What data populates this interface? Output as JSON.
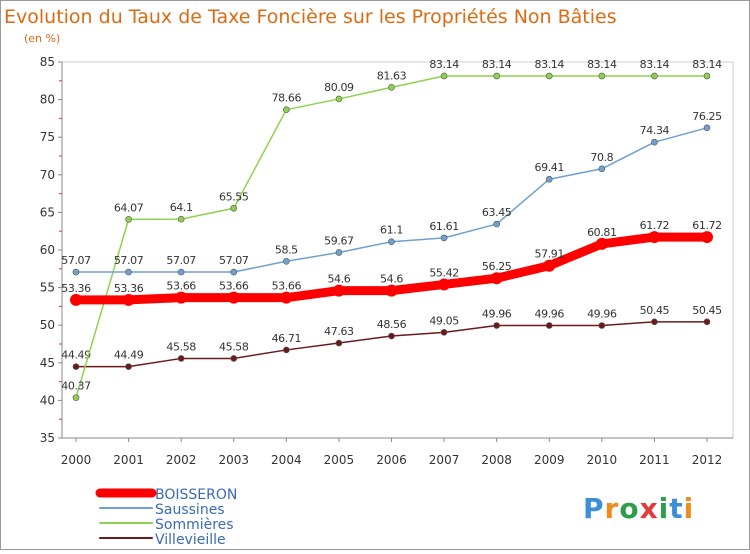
{
  "chart_data": {
    "type": "line",
    "title": "Evolution du Taux de Taxe Foncière sur les Propriétés Non Bâties",
    "subtitle": "(en %)",
    "xlabel": "",
    "ylabel": "",
    "x": [
      "2000",
      "2001",
      "2002",
      "2003",
      "2004",
      "2005",
      "2006",
      "2007",
      "2008",
      "2009",
      "2010",
      "2011",
      "2012"
    ],
    "ylim": [
      35,
      85
    ],
    "yticks": [
      "35",
      "40",
      "45",
      "50",
      "55",
      "60",
      "65",
      "70",
      "75",
      "80",
      "85"
    ],
    "grid": false,
    "legend_position": "bottom-left",
    "series": [
      {
        "name": "Villevieille",
        "color": "#6b1a1a",
        "values": [
          44.49,
          44.49,
          45.58,
          45.58,
          46.71,
          47.63,
          48.56,
          49.05,
          49.96,
          49.96,
          49.96,
          50.45,
          50.45
        ],
        "labels": [
          "44.49",
          "44.49",
          "45.58",
          "45.58",
          "46.71",
          "47.63",
          "48.56",
          "49.05",
          "49.96",
          "49.96",
          "49.96",
          "50.45",
          "50.45"
        ]
      },
      {
        "name": "Sommières",
        "color": "#8fd14f",
        "values": [
          40.37,
          64.07,
          64.1,
          65.55,
          78.66,
          80.09,
          81.63,
          83.14,
          83.14,
          83.14,
          83.14,
          83.14,
          83.14
        ],
        "labels": [
          "40.37",
          "64.07",
          "64.1",
          "65.55",
          "78.66",
          "80.09",
          "81.63",
          "83.14",
          "83.14",
          "83.14",
          "83.14",
          "83.14",
          "83.14"
        ]
      },
      {
        "name": "Saussines",
        "color": "#6fa0cf",
        "values": [
          57.07,
          57.07,
          57.07,
          57.07,
          58.5,
          59.67,
          61.1,
          61.61,
          63.45,
          69.41,
          70.8,
          74.34,
          76.25
        ],
        "labels": [
          "57.07",
          "57.07",
          "57.07",
          "57.07",
          "58.5",
          "59.67",
          "61.1",
          "61.61",
          "63.45",
          "69.41",
          "70.8",
          "74.34",
          "76.25"
        ]
      },
      {
        "name": "BOISSERON",
        "color": "#ff0000",
        "values": [
          53.36,
          53.36,
          53.66,
          53.66,
          53.66,
          54.6,
          54.6,
          55.42,
          56.25,
          57.91,
          60.81,
          61.72,
          61.72
        ],
        "labels": [
          "53.36",
          "53.36",
          "53.66",
          "53.66",
          "53.66",
          "54.6",
          "54.6",
          "55.42",
          "56.25",
          "57.91",
          "60.81",
          "61.72",
          "61.72"
        ]
      }
    ],
    "legend": [
      "BOISSERON",
      "Saussines",
      "Sommières",
      "Villevieille"
    ]
  },
  "logo": {
    "text": "Proxiti"
  }
}
